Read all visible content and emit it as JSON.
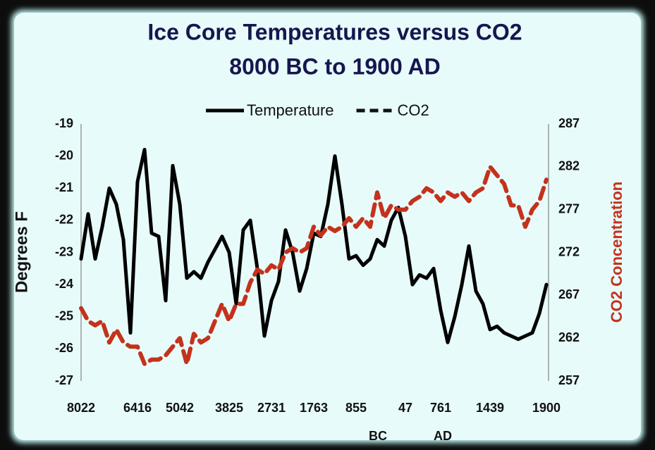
{
  "chart_data": {
    "type": "line",
    "title": "Ice Core Temperatures versus CO2",
    "subtitle": "8000 BC to 1900 AD",
    "y_label": "Degrees F",
    "y2_label": "CO2 Concentration",
    "annotations": [
      "BC",
      "AD"
    ],
    "categories": [
      "8022",
      null,
      null,
      null,
      null,
      null,
      null,
      null,
      "6416",
      null,
      null,
      null,
      null,
      null,
      "5042",
      null,
      null,
      null,
      null,
      null,
      null,
      "3825",
      null,
      null,
      null,
      null,
      null,
      "2731",
      null,
      null,
      null,
      null,
      null,
      "1763",
      null,
      null,
      null,
      null,
      null,
      "855",
      null,
      null,
      null,
      null,
      null,
      null,
      "47",
      null,
      null,
      null,
      null,
      "761",
      null,
      null,
      null,
      null,
      null,
      null,
      "1439",
      null,
      null,
      null,
      null,
      null,
      null,
      null,
      "1900"
    ],
    "series": [
      {
        "name": "Temperature",
        "color": "#000000",
        "dash": false,
        "axis": "y",
        "values": [
          -23.2,
          -21.8,
          -23.2,
          -22.2,
          -21.0,
          -21.5,
          -22.6,
          -25.5,
          -20.8,
          -19.8,
          -22.4,
          -22.5,
          -24.5,
          -20.3,
          -21.5,
          -23.8,
          -23.6,
          -23.8,
          -23.3,
          -22.9,
          -22.5,
          -23.0,
          -24.6,
          -22.3,
          -22.0,
          -23.5,
          -25.6,
          -24.5,
          -23.9,
          -22.3,
          -23.0,
          -24.2,
          -23.5,
          -22.4,
          -22.5,
          -21.5,
          -20.0,
          -21.5,
          -23.2,
          -23.1,
          -23.4,
          -23.2,
          -22.6,
          -22.8,
          -22.0,
          -21.6,
          -22.5,
          -24.0,
          -23.7,
          -23.8,
          -23.5,
          -24.8,
          -25.8,
          -25.0,
          -24.0,
          -22.8,
          -24.2,
          -24.6,
          -25.4,
          -25.3,
          -25.5,
          -25.6,
          -25.7,
          -25.6,
          -25.5,
          -24.9,
          -24.0
        ]
      },
      {
        "name": "CO2",
        "color": "#c4321c",
        "dash": true,
        "axis": "y2",
        "values": [
          265.5,
          264,
          263.5,
          264,
          261.5,
          263,
          261.5,
          261,
          261,
          259,
          259.5,
          259.5,
          260,
          261,
          262,
          259,
          262.5,
          261.5,
          262,
          264,
          266,
          264,
          266,
          266,
          268.5,
          270,
          269.5,
          270.5,
          270,
          272,
          272.5,
          272,
          272.5,
          275,
          274,
          275,
          274.5,
          275,
          276,
          275,
          276,
          275,
          279,
          276,
          277.5,
          277,
          277,
          278,
          278.5,
          279.5,
          279,
          278,
          279,
          278.5,
          279,
          278,
          279,
          279.5,
          282,
          281,
          280,
          277.5,
          277.5,
          275,
          277,
          278,
          280.5
        ]
      }
    ],
    "ylim": [
      -27,
      -19
    ],
    "yticks": [
      -19,
      -20,
      -21,
      -22,
      -23,
      -24,
      -25,
      -26,
      -27
    ],
    "y2lim": [
      257,
      287
    ],
    "y2ticks": [
      287,
      282,
      277,
      272,
      267,
      262,
      257
    ],
    "grid": false,
    "legend": "top"
  }
}
